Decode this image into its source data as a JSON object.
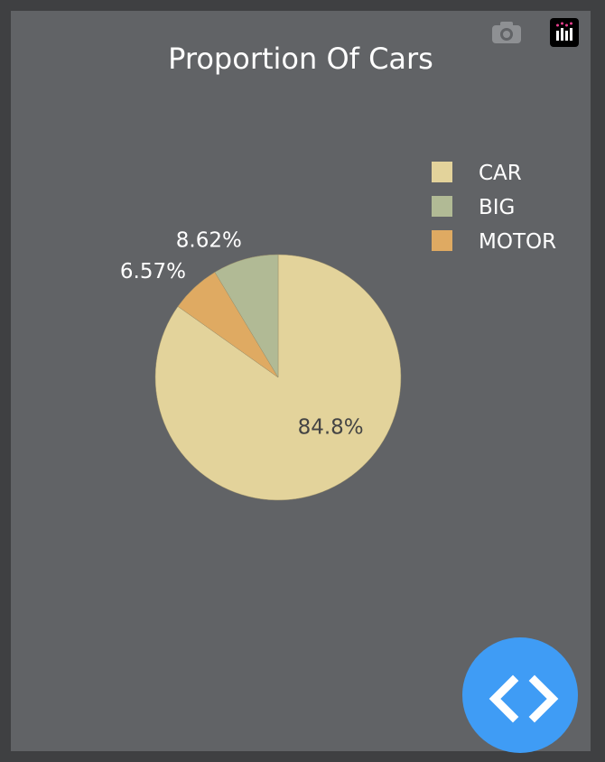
{
  "toolbar": {
    "camera_icon": "camera-icon",
    "logo_icon": "plotly-logo-icon"
  },
  "chart_data": {
    "type": "pie",
    "title": "Proportion Of Cars",
    "labels": [
      "CAR",
      "BIG",
      "MOTOR"
    ],
    "values": [
      84.8,
      8.62,
      6.57
    ],
    "percent_labels": [
      "84.8%",
      "8.62%",
      "6.57%"
    ],
    "colors": [
      "#e3d39b",
      "#b1ba95",
      "#dfaa62"
    ],
    "legend_position": "top-right",
    "direction": "clockwise",
    "start": "12 o'clock"
  },
  "fab": {
    "icon": "code-brackets-icon",
    "color": "#3f9cf5"
  }
}
